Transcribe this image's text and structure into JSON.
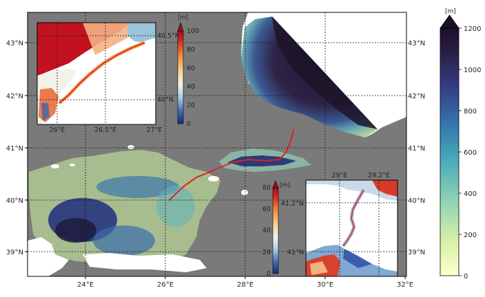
{
  "main_map": {
    "x_ticks": [
      "24°E",
      "26°E",
      "28°E",
      "30°E",
      "32°E"
    ],
    "y_ticks_left": [
      "43°N",
      "42°N",
      "41°N",
      "40°N",
      "39°N"
    ],
    "y_ticks_right": [
      "43°N",
      "42°N",
      "41°N",
      "40°N",
      "39°N"
    ]
  },
  "colorbar_main": {
    "unit": "[m]",
    "ticks": [
      "1200",
      "1000",
      "800",
      "600",
      "400",
      "200",
      "0"
    ],
    "range": [
      0,
      1200
    ],
    "extend": "max",
    "colors": [
      "#ffffcc",
      "#c7e9b4",
      "#7fcdbb",
      "#41b6c4",
      "#2c7fb8",
      "#253494",
      "#2b1d3f",
      "#1a0f24"
    ]
  },
  "inset_dardanelles": {
    "x_ticks": [
      "26°E",
      "26.5°E",
      "27°E"
    ],
    "y_ticks": [
      "40.5°N",
      "40°N"
    ]
  },
  "colorbar_dardanelles": {
    "unit": "[m]",
    "ticks": [
      "100",
      "80",
      "60",
      "40",
      "20",
      "0"
    ],
    "range": [
      0,
      100
    ],
    "extend": "max"
  },
  "inset_bosphorus": {
    "x_ticks": [
      "29°E",
      "29.2°E"
    ],
    "y_ticks": [
      "41.2°N",
      "41°N"
    ]
  },
  "colorbar_bosphorus": {
    "unit": "[m]",
    "ticks": [
      "80",
      "60",
      "40",
      "20",
      "0"
    ],
    "range": [
      0,
      80
    ],
    "extend": "max"
  },
  "colors": {
    "land": "#7a7a7a",
    "sea_shallow": "#b8c99a",
    "sea_deep": "#231a33",
    "channel": "#e02020",
    "grid": "#111111"
  }
}
